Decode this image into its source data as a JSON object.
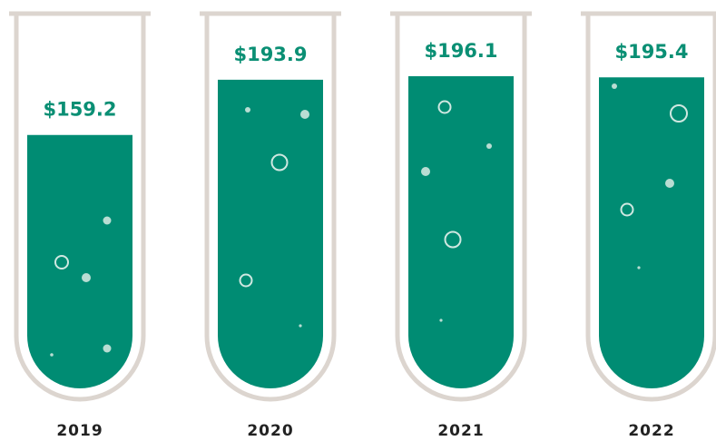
{
  "chart_data": {
    "type": "tube",
    "categories": [
      "2019",
      "2020",
      "2021",
      "2022"
    ],
    "values": [
      159.2,
      193.9,
      196.1,
      195.4
    ],
    "value_labels": [
      "$159.2",
      "$193.9",
      "$196.1",
      "$195.4"
    ],
    "color": "#008c73"
  }
}
